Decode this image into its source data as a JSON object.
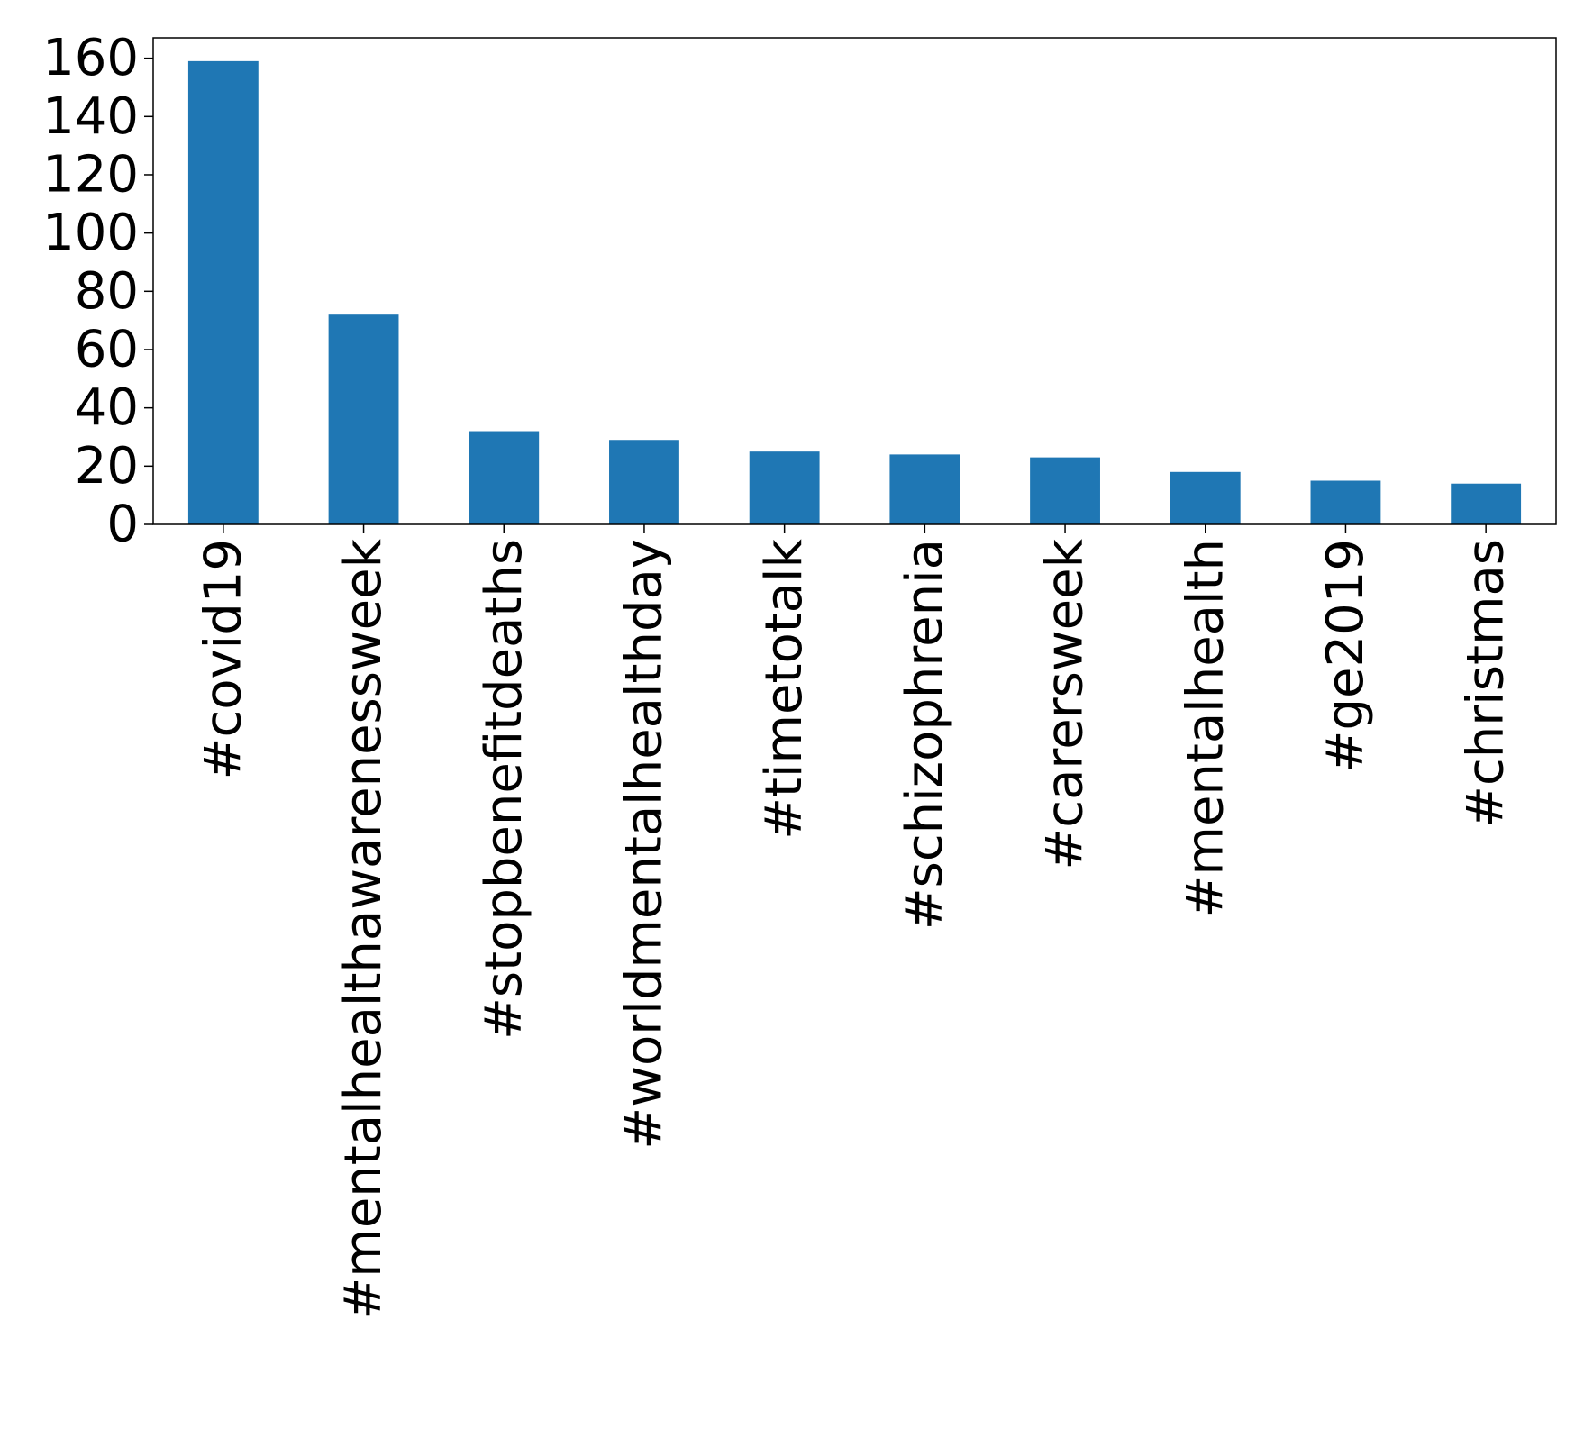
{
  "chart_data": {
    "type": "bar",
    "categories": [
      "#covid19",
      "#mentalhealthawarenessweek",
      "#stopbenefitdeaths",
      "#worldmentalhealthday",
      "#timetotalk",
      "#schizophrenia",
      "#carersweek",
      "#mentalhealth",
      "#ge2019",
      "#christmas"
    ],
    "values": [
      159,
      72,
      32,
      29,
      25,
      24,
      23,
      18,
      15,
      14
    ],
    "title": "",
    "xlabel": "",
    "ylabel": "",
    "ylim": [
      0,
      167
    ],
    "yticks": [
      0,
      20,
      40,
      60,
      80,
      100,
      120,
      140,
      160
    ],
    "grid": false,
    "legend": "none",
    "bar_color": "#1f77b4"
  }
}
